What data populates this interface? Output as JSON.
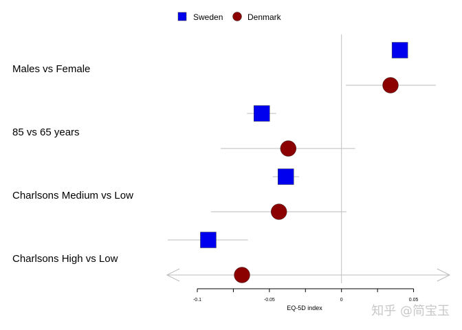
{
  "chart_data": {
    "type": "forest",
    "title": "",
    "xlabel": "EQ-5D index",
    "ylabel": "",
    "xlim": [
      -0.121,
      0.075
    ],
    "xticks": [
      -0.1,
      -0.075,
      -0.05,
      -0.025,
      0,
      0.025,
      0.05
    ],
    "xtick_labels": [
      "-0.1",
      "",
      "-0.05",
      "",
      "0",
      "",
      "0.05"
    ],
    "reference_line": 0,
    "grid": false,
    "legend": {
      "position": "top",
      "entries": [
        "Sweden",
        "Denmark"
      ]
    },
    "categories": [
      "Males vs Female",
      "85 vs 65 years",
      "Charlsons Medium vs Low",
      "Charlsons High vs Low"
    ],
    "series": [
      {
        "name": "Sweden",
        "marker": "square",
        "color": "#0000ee",
        "estimates": [
          0.0405,
          -0.0553,
          -0.0386,
          -0.0924
        ],
        "ci_lower": [
          0.038,
          -0.0655,
          -0.0477,
          -0.1205
        ],
        "ci_upper": [
          0.043,
          -0.0453,
          -0.0294,
          -0.0649
        ]
      },
      {
        "name": "Denmark",
        "marker": "circle",
        "color": "#8b0000",
        "estimates": [
          0.034,
          -0.0369,
          -0.0434,
          -0.069
        ],
        "ci_lower": [
          0.003,
          -0.0838,
          -0.0906,
          -0.121
        ],
        "ci_upper": [
          0.0655,
          0.0095,
          0.0035,
          0.075
        ],
        "ci_clipped": [
          false,
          false,
          false,
          true
        ]
      }
    ]
  },
  "watermark": "知乎 @简宝玉"
}
